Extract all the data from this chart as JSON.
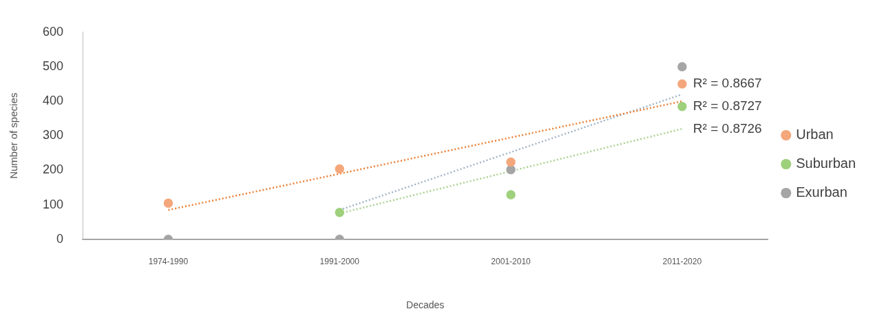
{
  "chart_data": {
    "type": "scatter",
    "xlabel": "Decades",
    "ylabel": "Number of species",
    "categories": [
      "1974-1990",
      "1991-2000",
      "2001-2010",
      "2011-2020"
    ],
    "ylim": [
      0,
      600
    ],
    "yticks": [
      0,
      100,
      200,
      300,
      400,
      500,
      600
    ],
    "legend": "right",
    "marker": "circle",
    "series": [
      {
        "name": "Urban",
        "color": "#f4a77b",
        "values": [
          105,
          204,
          224,
          450
        ]
      },
      {
        "name": "Suburban",
        "color": "#9fd07c",
        "values": [
          null,
          78,
          129,
          385
        ]
      },
      {
        "name": "Exurban",
        "color": "#a5a5a5",
        "values": [
          0,
          0,
          202,
          500
        ]
      },
      {
        "type": "line",
        "color": "#ed7d31",
        "line_style": "dotted",
        "marker": "none",
        "x": [
          "1974-1990",
          "2011-2020"
        ],
        "values": [
          85,
          400
        ]
      },
      {
        "type": "line",
        "color": "#a9d18e",
        "line_style": "dotted",
        "marker": "none",
        "x": [
          "1991-2000",
          "2011-2020"
        ],
        "values": [
          75,
          320
        ]
      },
      {
        "type": "line",
        "color": "#a0b4c8",
        "line_style": "dotted",
        "marker": "none",
        "x": [
          "1991-2000",
          "2011-2020"
        ],
        "values": [
          85,
          420
        ]
      }
    ],
    "annotations": [
      {
        "text": "R² = 0.8667",
        "x": "2011-2020",
        "y": 450
      },
      {
        "text": "R² = 0.8727",
        "x": "2011-2020",
        "y": 385
      },
      {
        "text": "R² = 0.8726",
        "x": "2011-2020",
        "y": 320
      }
    ]
  }
}
